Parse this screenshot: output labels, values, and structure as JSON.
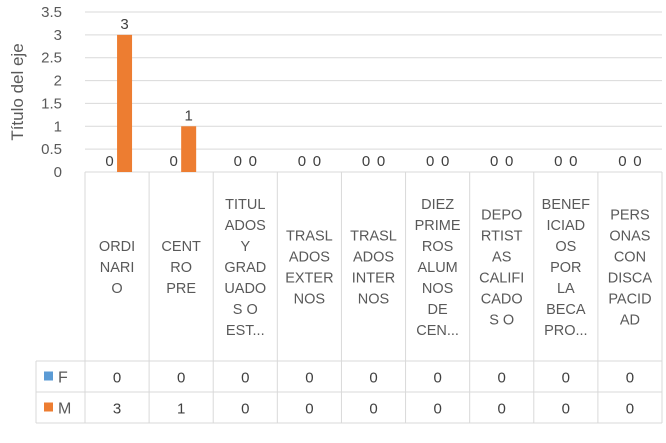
{
  "chart_data": {
    "type": "bar",
    "ylabel": "Título del eje",
    "ylim": [
      0,
      3.5
    ],
    "yticks": [
      0,
      0.5,
      1,
      1.5,
      2,
      2.5,
      3,
      3.5
    ],
    "ytick_labels": [
      "0",
      "0.5",
      "1",
      "1.5",
      "2",
      "2.5",
      "3",
      "3.5"
    ],
    "grid": true,
    "data_labels": true,
    "data_table": true,
    "categories": [
      "ORDINARIO",
      "CENTROPRE",
      "TITULADOS Y GRADUADOS O EST...",
      "TRASLADOS EXTERNOS",
      "TRASLADOS INTERNOS",
      "DIEZ PRIMEROS ALUMNOS DE CEN...",
      "DEPORTISTAS CALIFICADOS O",
      "BENEFICIADOS POR LA BECA PRO...",
      "PERSONAS CON DISCAPACIDAD"
    ],
    "category_lines": [
      [
        "ORDI",
        "NARI",
        "O"
      ],
      [
        "CENT",
        "RO",
        "PRE"
      ],
      [
        "TITUL",
        "ADOS",
        "Y",
        "GRAD",
        "UADO",
        "S O",
        "EST..."
      ],
      [
        "TRASL",
        "ADOS",
        "EXTER",
        "NOS"
      ],
      [
        "TRASL",
        "ADOS",
        "INTER",
        "NOS"
      ],
      [
        "DIEZ",
        "PRIME",
        "ROS",
        "ALUM",
        "NOS",
        "DE",
        "CEN..."
      ],
      [
        "DEPO",
        "RTIST",
        "AS",
        "CALIFI",
        "CADO",
        "S O"
      ],
      [
        "BENEF",
        "ICIAD",
        "OS",
        "POR",
        "LA",
        "BECA",
        "PRO..."
      ],
      [
        "PERS",
        "ONAS",
        "CON",
        "DISCA",
        "PACID",
        "AD"
      ]
    ],
    "series": [
      {
        "name": "F",
        "color": "#5B9BD5",
        "values": [
          0,
          0,
          0,
          0,
          0,
          0,
          0,
          0,
          0
        ]
      },
      {
        "name": "M",
        "color": "#ED7D31",
        "values": [
          3,
          1,
          0,
          0,
          0,
          0,
          0,
          0,
          0
        ]
      }
    ]
  }
}
